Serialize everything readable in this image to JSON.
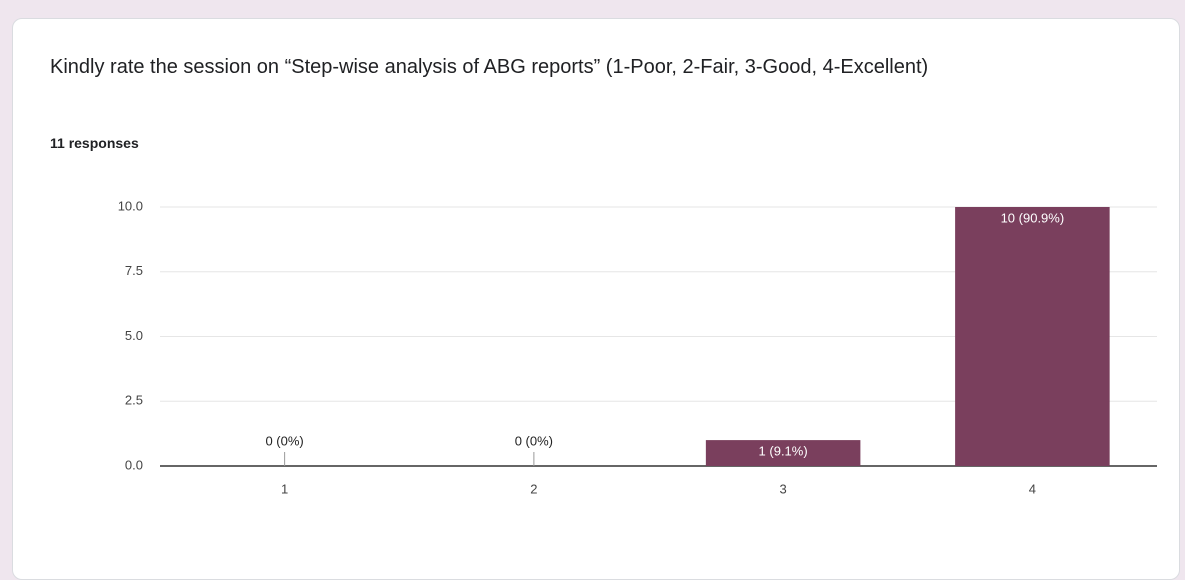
{
  "chart_data": {
    "type": "bar",
    "title": "Kindly rate the session on “Step-wise analysis of ABG reports” (1-Poor, 2-Fair, 3-Good, 4-Excellent)",
    "subtitle": "11 responses",
    "categories": [
      "1",
      "2",
      "3",
      "4"
    ],
    "values": [
      0,
      0,
      1,
      10
    ],
    "value_labels": [
      "0 (0%)",
      "0 (0%)",
      "1 (9.1%)",
      "10 (90.9%)"
    ],
    "color": "#7a3f5d",
    "ylim": [
      0,
      10
    ],
    "yticks": [
      {
        "value": 0,
        "label": "0.0"
      },
      2.5,
      {
        "value": 5,
        "label": "5.0"
      },
      7.5,
      {
        "value": 10,
        "label": "10.0"
      }
    ],
    "grid": true
  }
}
